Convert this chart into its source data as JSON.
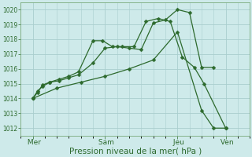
{
  "background_color": "#ceeaea",
  "grid_color": "#aacece",
  "line_color": "#2d6a2d",
  "xlabel": "Pression niveau de la mer( hPa )",
  "ylim": [
    1011.5,
    1020.5
  ],
  "yticks": [
    1012,
    1013,
    1014,
    1015,
    1016,
    1017,
    1018,
    1019,
    1020
  ],
  "day_labels": [
    " Mer",
    " Sam",
    " Jeu",
    " Ven"
  ],
  "day_positions": [
    0.5,
    3.5,
    6.5,
    8.5
  ],
  "xlim": [
    0,
    9.5
  ],
  "series1_x": [
    0.5,
    0.7,
    0.9,
    1.2,
    1.6,
    2.0,
    2.4,
    3.0,
    3.5,
    4.0,
    4.5,
    5.0,
    5.5,
    6.0,
    6.5,
    7.0,
    7.5,
    8.0
  ],
  "series1_y": [
    1014.0,
    1014.5,
    1014.8,
    1015.1,
    1015.2,
    1015.4,
    1015.6,
    1016.4,
    1017.4,
    1017.5,
    1017.4,
    1017.3,
    1019.1,
    1019.3,
    1020.0,
    1019.8,
    1016.1,
    1016.1
  ],
  "series2_x": [
    0.5,
    0.7,
    0.9,
    1.2,
    1.6,
    2.0,
    2.4,
    3.0,
    3.4,
    3.8,
    4.2,
    4.7,
    5.2,
    5.7,
    6.2,
    6.7,
    7.2,
    7.6,
    8.5
  ],
  "series2_y": [
    1014.0,
    1014.4,
    1014.9,
    1015.1,
    1015.3,
    1015.5,
    1015.8,
    1017.9,
    1017.9,
    1017.5,
    1017.5,
    1017.5,
    1019.2,
    1019.4,
    1019.2,
    1016.8,
    1016.1,
    1015.0,
    1012.0
  ],
  "series3_x": [
    0.5,
    1.5,
    2.5,
    3.5,
    4.5,
    5.5,
    6.5,
    7.5,
    8.0,
    8.5
  ],
  "series3_y": [
    1014.0,
    1014.7,
    1015.1,
    1015.5,
    1016.0,
    1016.6,
    1018.5,
    1013.2,
    1012.0,
    1012.0
  ],
  "marker_size": 2.5,
  "linewidth": 0.9,
  "ytick_fontsize": 5.5,
  "xtick_fontsize": 6.5,
  "xlabel_fontsize": 7.5
}
